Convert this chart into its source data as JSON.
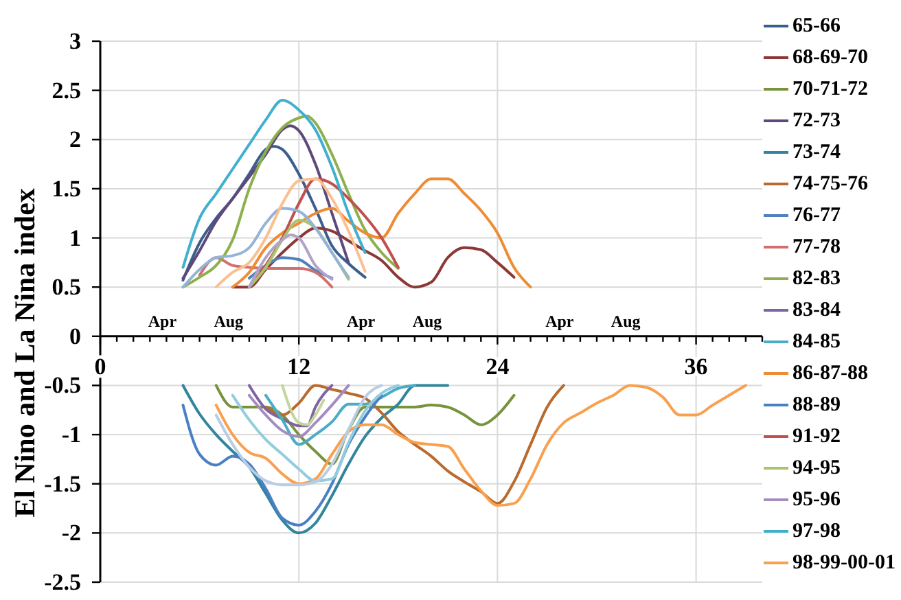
{
  "chart_data": {
    "type": "line",
    "ylabel": "El Nino and La Nina index",
    "xlim": [
      0,
      40
    ],
    "xticks": [
      0,
      {
        "value": 1,
        "label": null
      },
      {
        "value": 2,
        "label": null
      },
      {
        "value": 3,
        "label": null
      },
      {
        "value": 4,
        "label": null
      },
      {
        "value": 5,
        "label": null
      },
      {
        "value": 6,
        "label": null
      },
      {
        "value": 7,
        "label": null
      },
      {
        "value": 8,
        "label": null
      },
      {
        "value": 9,
        "label": null
      },
      {
        "value": 10,
        "label": null
      },
      {
        "value": 11,
        "label": null
      },
      12,
      {
        "value": 13,
        "label": null
      },
      {
        "value": 14,
        "label": null
      },
      {
        "value": 15,
        "label": null
      },
      {
        "value": 16,
        "label": null
      },
      {
        "value": 17,
        "label": null
      },
      {
        "value": 18,
        "label": null
      },
      {
        "value": 19,
        "label": null
      },
      {
        "value": 20,
        "label": null
      },
      {
        "value": 21,
        "label": null
      },
      {
        "value": 22,
        "label": null
      },
      {
        "value": 23,
        "label": null
      },
      24,
      {
        "value": 25,
        "label": null
      },
      {
        "value": 26,
        "label": null
      },
      {
        "value": 27,
        "label": null
      },
      {
        "value": 28,
        "label": null
      },
      {
        "value": 29,
        "label": null
      },
      {
        "value": 30,
        "label": null
      },
      {
        "value": 31,
        "label": null
      },
      {
        "value": 32,
        "label": null
      },
      {
        "value": 33,
        "label": null
      },
      {
        "value": 34,
        "label": null
      },
      {
        "value": 35,
        "label": null
      },
      36,
      {
        "value": 37,
        "label": null
      },
      {
        "value": 38,
        "label": null
      },
      {
        "value": 39,
        "label": null
      },
      {
        "value": 40,
        "label": null
      }
    ],
    "ylim": [
      -2.5,
      3
    ],
    "yticks": [
      -2.5,
      -2,
      -1.5,
      -1,
      -0.5,
      0,
      0.5,
      1,
      1.5,
      2,
      2.5,
      3
    ],
    "grid": true,
    "legend": "right",
    "line_style": "solid",
    "annotations": [
      "Apr",
      "Aug",
      "Apr",
      "Aug",
      "Apr",
      "Aug"
    ],
    "series": [
      {
        "name": "65-66",
        "color": "#3b5e8f",
        "x": [
          5,
          6,
          7,
          8,
          9,
          10,
          10.5,
          11,
          12,
          13,
          14,
          15,
          16
        ],
        "values": [
          0.57,
          0.95,
          1.2,
          1.4,
          1.65,
          1.9,
          1.93,
          1.9,
          1.65,
          1.3,
          0.92,
          0.74,
          0.6
        ]
      },
      {
        "name": "68-69-70",
        "color": "#8c3836",
        "x": [
          8,
          9,
          10,
          11,
          12,
          13,
          14,
          15,
          16,
          17,
          18,
          19,
          20,
          21,
          22,
          23,
          24,
          25
        ],
        "values": [
          0.5,
          0.5,
          0.68,
          0.85,
          1.0,
          1.1,
          1.07,
          0.97,
          0.87,
          0.77,
          0.6,
          0.5,
          0.55,
          0.8,
          0.9,
          0.88,
          0.75,
          0.6
        ]
      },
      {
        "name": "70-71-72",
        "color": "#77933c",
        "x": [
          7,
          8,
          9,
          10,
          11,
          12,
          13,
          14,
          15,
          16,
          17,
          18,
          19,
          20,
          21,
          22,
          23,
          24,
          25
        ],
        "values": [
          -0.5,
          -0.72,
          -0.72,
          -0.72,
          -0.8,
          -1.0,
          -1.17,
          -1.3,
          -0.95,
          -0.72,
          -0.72,
          -0.72,
          -0.72,
          -0.7,
          -0.72,
          -0.8,
          -0.9,
          -0.8,
          -0.6
        ]
      },
      {
        "name": "72-73",
        "color": "#5f497a",
        "x": [
          5,
          6,
          7,
          8,
          9,
          10,
          11,
          11.5,
          12,
          13,
          14,
          15
        ],
        "values": [
          0.59,
          0.87,
          1.17,
          1.4,
          1.62,
          1.85,
          2.1,
          2.14,
          2.09,
          1.75,
          1.25,
          0.75
        ]
      },
      {
        "name": "73-74",
        "color": "#31859c",
        "x": [
          5,
          6,
          7,
          8,
          9,
          10,
          11,
          12,
          13,
          14,
          15,
          16,
          17,
          18,
          19,
          20,
          21
        ],
        "values": [
          -0.5,
          -0.79,
          -1.0,
          -1.17,
          -1.33,
          -1.6,
          -1.87,
          -2.0,
          -1.9,
          -1.62,
          -1.3,
          -1.02,
          -0.83,
          -0.69,
          -0.5,
          -0.5,
          -0.5
        ]
      },
      {
        "name": "74-75-76",
        "color": "#b96a2c",
        "x": [
          10,
          11,
          12,
          13,
          14,
          15,
          16,
          17,
          18,
          19,
          20,
          21,
          22,
          23,
          24,
          25,
          26,
          27,
          28
        ],
        "values": [
          -0.72,
          -0.8,
          -0.68,
          -0.5,
          -0.54,
          -0.58,
          -0.63,
          -0.78,
          -0.97,
          -1.1,
          -1.22,
          -1.37,
          -1.48,
          -1.58,
          -1.7,
          -1.48,
          -1.1,
          -0.72,
          -0.5
        ]
      },
      {
        "name": "76-77",
        "color": "#4f81bd",
        "x": [
          9,
          10,
          11,
          12,
          13,
          14
        ],
        "values": [
          0.59,
          0.72,
          0.8,
          0.78,
          0.67,
          0.59
        ]
      },
      {
        "name": "77-78",
        "color": "#d0706d",
        "x": [
          6,
          7,
          8,
          9,
          10,
          11,
          12,
          13,
          14
        ],
        "values": [
          0.62,
          0.8,
          0.72,
          0.7,
          0.69,
          0.69,
          0.69,
          0.65,
          0.5
        ]
      },
      {
        "name": "82-83",
        "color": "#8db04e",
        "x": [
          5,
          6,
          7,
          8,
          9,
          10,
          11,
          12,
          12.5,
          13,
          14,
          15,
          16,
          17,
          18
        ],
        "values": [
          0.5,
          0.6,
          0.72,
          0.98,
          1.5,
          1.88,
          2.12,
          2.22,
          2.24,
          2.17,
          1.85,
          1.45,
          1.08,
          0.85,
          0.69
        ]
      },
      {
        "name": "83-84",
        "color": "#8064a2",
        "x": [
          9,
          10,
          11,
          12,
          12.5,
          13,
          14
        ],
        "values": [
          -0.5,
          -0.74,
          -0.84,
          -0.91,
          -0.91,
          -0.72,
          -0.5
        ]
      },
      {
        "name": "84-85",
        "color": "#4bacc6",
        "x": [
          10,
          11,
          12,
          13,
          14,
          15,
          16,
          17,
          18,
          19
        ],
        "values": [
          -0.6,
          -0.85,
          -1.1,
          -1.0,
          -0.87,
          -0.69,
          -0.69,
          -0.62,
          -0.53,
          -0.5
        ]
      },
      {
        "name": "86-87-88",
        "color": "#ee8c35",
        "x": [
          8,
          9,
          10,
          11,
          12,
          13,
          14,
          15,
          16,
          17,
          18,
          19,
          20,
          21,
          22,
          23,
          24,
          25,
          26
        ],
        "values": [
          0.5,
          0.65,
          0.9,
          1.05,
          1.15,
          1.25,
          1.3,
          1.17,
          1.05,
          1.0,
          1.25,
          1.45,
          1.6,
          1.6,
          1.45,
          1.28,
          1.05,
          0.7,
          0.5
        ]
      },
      {
        "name": "88-89",
        "color": "#4a7fc4",
        "x": [
          5,
          6,
          7,
          8,
          9,
          10,
          11,
          12,
          13,
          14,
          15,
          16,
          17
        ],
        "values": [
          -0.7,
          -1.2,
          -1.31,
          -1.22,
          -1.3,
          -1.55,
          -1.85,
          -1.92,
          -1.78,
          -1.5,
          -1.1,
          -0.82,
          -0.6
        ]
      },
      {
        "name": "91-92",
        "color": "#c0504d",
        "x": [
          9,
          10,
          11,
          12,
          13,
          14,
          15,
          16,
          17,
          18
        ],
        "values": [
          0.5,
          0.72,
          1.0,
          1.35,
          1.6,
          1.55,
          1.4,
          1.22,
          1.0,
          0.7
        ]
      },
      {
        "name": "94-95",
        "color": "#a9c46c",
        "x": [
          9,
          10,
          11,
          12,
          13,
          14,
          15
        ],
        "values": [
          0.5,
          0.7,
          0.98,
          1.18,
          1.1,
          0.85,
          0.58
        ]
      },
      {
        "name": "95-96",
        "color": "#a48cc0",
        "x": [
          9,
          10,
          11,
          12,
          13,
          14,
          15
        ],
        "values": [
          -0.6,
          -0.8,
          -0.96,
          -1.02,
          -0.88,
          -0.7,
          -0.5
        ]
      },
      {
        "name": "97-98",
        "color": "#40b0cf",
        "x": [
          5,
          6,
          7,
          8,
          9,
          10,
          11,
          12,
          13,
          14,
          15,
          16
        ],
        "values": [
          0.7,
          1.2,
          1.45,
          1.7,
          1.95,
          2.2,
          2.4,
          2.3,
          2.1,
          1.72,
          1.25,
          0.85
        ]
      },
      {
        "name": "98-99-00-01",
        "color": "#f9a04f",
        "x": [
          7,
          8,
          9,
          10,
          11,
          12,
          13,
          14,
          15,
          16,
          17,
          18,
          19,
          20,
          21,
          22,
          23,
          24,
          25,
          26,
          27,
          28,
          29,
          30,
          31,
          32,
          33,
          34,
          35,
          36,
          37,
          38,
          39
        ],
        "values": [
          -0.7,
          -1.0,
          -1.18,
          -1.24,
          -1.4,
          -1.5,
          -1.45,
          -1.2,
          -0.97,
          -0.9,
          -0.9,
          -1.0,
          -1.08,
          -1.1,
          -1.12,
          -1.35,
          -1.57,
          -1.72,
          -1.7,
          -1.45,
          -1.1,
          -0.88,
          -0.78,
          -0.68,
          -0.6,
          -0.5,
          -0.52,
          -0.62,
          -0.8,
          -0.8,
          -0.7,
          -0.6,
          -0.5
        ]
      },
      {
        "color": "#95b3d7",
        "x": [
          5,
          6,
          7,
          8,
          9,
          10,
          11,
          12,
          13,
          14,
          15
        ],
        "values": [
          0.5,
          0.68,
          0.8,
          0.82,
          0.9,
          1.15,
          1.3,
          1.27,
          1.1,
          0.85,
          0.6
        ]
      },
      {
        "color": "#fac090",
        "x": [
          7,
          8,
          9,
          10,
          11,
          12,
          13,
          14,
          15,
          16
        ],
        "values": [
          0.5,
          0.65,
          0.75,
          1.0,
          1.35,
          1.58,
          1.6,
          1.4,
          1.07,
          0.66
        ]
      },
      {
        "color": "#b3a2c7",
        "x": [
          9,
          10,
          11,
          11.5,
          12,
          13,
          14
        ],
        "values": [
          0.5,
          0.8,
          0.98,
          1.03,
          1.0,
          0.72,
          0.58
        ]
      },
      {
        "color": "#93cddd",
        "x": [
          8,
          9,
          10,
          11,
          12,
          13,
          14,
          15,
          16,
          17,
          18
        ],
        "values": [
          -0.6,
          -0.85,
          -1.05,
          -1.2,
          -1.35,
          -1.47,
          -1.45,
          -1.08,
          -0.76,
          -0.58,
          -0.5
        ]
      },
      {
        "color": "#b9cde5",
        "x": [
          7,
          8,
          9,
          10,
          11,
          12,
          13,
          14,
          15,
          16,
          17
        ],
        "values": [
          -0.8,
          -1.1,
          -1.33,
          -1.47,
          -1.51,
          -1.51,
          -1.48,
          -1.3,
          -0.95,
          -0.62,
          -0.5
        ]
      },
      {
        "color": "#c3d69b",
        "x": [
          11,
          12,
          12.5,
          13,
          13.5
        ],
        "values": [
          -0.5,
          -0.88,
          -0.9,
          -0.8,
          -0.65
        ]
      }
    ]
  }
}
